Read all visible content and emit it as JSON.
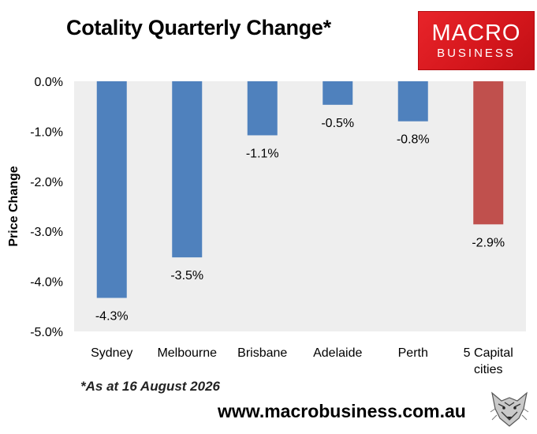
{
  "title": "Cotality Quarterly Change*",
  "logo": {
    "line1": "MACRO",
    "line2": "BUSINESS"
  },
  "footnote": "*As at 16 August 2026",
  "website": "www.macrobusiness.com.au",
  "chart_data": {
    "type": "bar",
    "categories": [
      "Sydney",
      "Melbourne",
      "Brisbane",
      "Adelaide",
      "Perth",
      "5 Capital cities"
    ],
    "category_lines": [
      [
        "Sydney"
      ],
      [
        "Melbourne"
      ],
      [
        "Brisbane"
      ],
      [
        "Adelaide"
      ],
      [
        "Perth"
      ],
      [
        "5 Capital",
        "cities"
      ]
    ],
    "values": [
      -4.33,
      -3.52,
      -1.08,
      -0.47,
      -0.8,
      -2.86
    ],
    "data_labels": [
      "-4.3%",
      "-3.5%",
      "-1.1%",
      "-0.5%",
      "-0.8%",
      "-2.9%"
    ],
    "bar_colors": [
      "#4f81bd",
      "#4f81bd",
      "#4f81bd",
      "#4f81bd",
      "#4f81bd",
      "#c0504d"
    ],
    "ylabel": "Price Change",
    "xlabel": "",
    "ylim": [
      -5.0,
      0.0
    ],
    "yticks": [
      0.0,
      -1.0,
      -2.0,
      -3.0,
      -4.0,
      -5.0
    ],
    "ytick_labels": [
      "0.0%",
      "-1.0%",
      "-2.0%",
      "-3.0%",
      "-4.0%",
      "-5.0%"
    ],
    "grid": false,
    "plot_background": "#eeeeee"
  }
}
